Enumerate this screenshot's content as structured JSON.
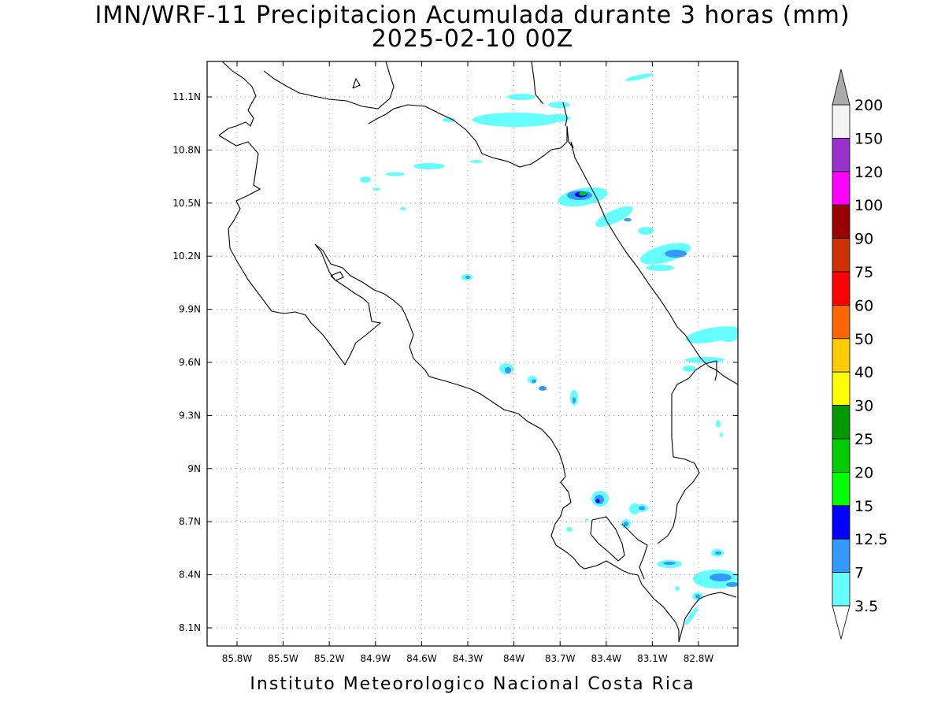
{
  "title_line1": "IMN/WRF-11 Precipitacion Acumulada durante 3 horas (mm)",
  "title_line2": "2025-02-10 00Z",
  "footer": "Instituto Meteorologico Nacional Costa Rica",
  "map": {
    "lon_range": [
      -86.15,
      -82.55
    ],
    "lat_range": [
      8.0,
      11.3
    ],
    "lat_labels": [
      "11.1N",
      "10.8N",
      "10.5N",
      "10.2N",
      "9.9N",
      "9.6N",
      "9.3N",
      "9N",
      "8.7N",
      "8.4N",
      "8.1N"
    ],
    "lon_labels": [
      "85.8W",
      "85.5W",
      "85.2W",
      "84.9W",
      "84.6W",
      "84.3W",
      "84W",
      "83.7W",
      "83.4W",
      "83.1W",
      "82.8W"
    ]
  },
  "colorbar": {
    "labels": [
      "200",
      "150",
      "120",
      "100",
      "90",
      "75",
      "60",
      "50",
      "40",
      "30",
      "25",
      "20",
      "15",
      "12.5",
      "7",
      "3.5"
    ],
    "colors": [
      "#f4f4f4",
      "#9932cc",
      "#ff00ff",
      "#990000",
      "#cc3300",
      "#ff0000",
      "#ff6600",
      "#ffcc00",
      "#ffff00",
      "#009900",
      "#00cc00",
      "#00ff00",
      "#0000ff",
      "#3399ff",
      "#66ffff"
    ],
    "top_arrow_color": "#aaaaaa",
    "bottom_arrow_color": "#ffffff"
  }
}
